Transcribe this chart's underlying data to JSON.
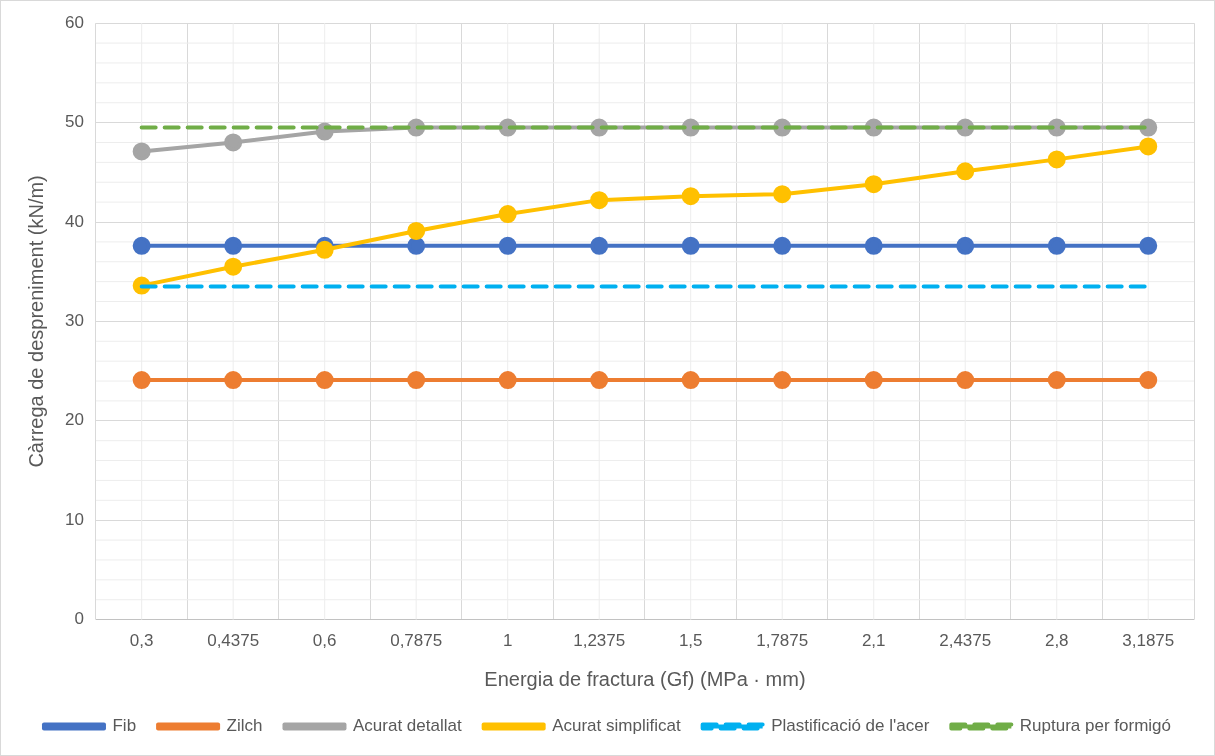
{
  "chart_data": {
    "type": "line",
    "xlabel": "Energia de fractura (Gf) (MPa · mm)",
    "ylabel": "Càrrega de despreniment (kN/m)",
    "categories": [
      "0,3",
      "0,4375",
      "0,6",
      "0,7875",
      "1",
      "1,2375",
      "1,5",
      "1,7875",
      "2,1",
      "2,4375",
      "2,8",
      "3,1875"
    ],
    "series": [
      {
        "name": "Fib",
        "color": "#4472c4",
        "marker": "circle",
        "values": [
          37.6,
          37.6,
          37.6,
          37.6,
          37.6,
          37.6,
          37.6,
          37.6,
          37.6,
          37.6,
          37.6,
          37.6
        ]
      },
      {
        "name": "Zilch",
        "color": "#ed7d31",
        "marker": "circle",
        "values": [
          24.1,
          24.1,
          24.1,
          24.1,
          24.1,
          24.1,
          24.1,
          24.1,
          24.1,
          24.1,
          24.1,
          24.1
        ]
      },
      {
        "name": "Acurat detallat",
        "color": "#a5a5a5",
        "marker": "circle",
        "values": [
          47.1,
          48.0,
          49.1,
          49.5,
          49.5,
          49.5,
          49.5,
          49.5,
          49.5,
          49.5,
          49.5,
          49.5
        ]
      },
      {
        "name": "Acurat simplificat",
        "color": "#ffc000",
        "marker": "circle",
        "values": [
          33.6,
          35.5,
          37.2,
          39.1,
          40.8,
          42.2,
          42.6,
          42.8,
          43.8,
          45.1,
          46.3,
          47.6
        ]
      },
      {
        "name": "Plastificació de l'acer",
        "color": "#00b0f0",
        "marker": "none",
        "line_style": "dashed",
        "values": [
          33.5,
          33.5,
          33.5,
          33.5,
          33.5,
          33.5,
          33.5,
          33.5,
          33.5,
          33.5,
          33.5,
          33.5
        ]
      },
      {
        "name": "Ruptura per formigó",
        "color": "#70ad47",
        "marker": "none",
        "line_style": "dashed",
        "values": [
          49.5,
          49.5,
          49.5,
          49.5,
          49.5,
          49.5,
          49.5,
          49.5,
          49.5,
          49.5,
          49.5,
          49.5
        ]
      }
    ],
    "ylim": [
      0,
      60
    ],
    "yticks": [
      0,
      10,
      20,
      30,
      40,
      50,
      60
    ],
    "grid": true,
    "legend": "bottom"
  }
}
